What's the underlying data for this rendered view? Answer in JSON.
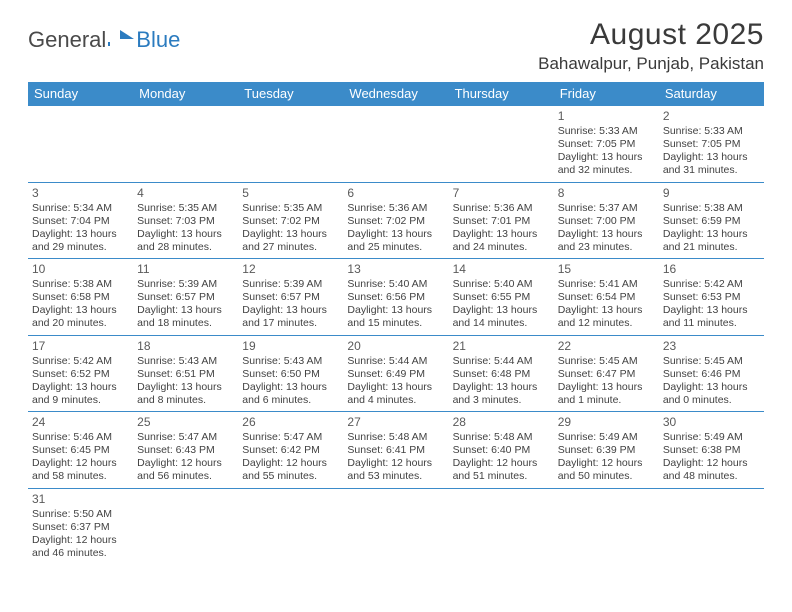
{
  "logo": {
    "text1": "General",
    "text2": "Blue"
  },
  "title": "August 2025",
  "subtitle": "Bahawalpur, Punjab, Pakistan",
  "colors": {
    "header_bg": "#3b8bc9",
    "header_text": "#ffffff",
    "row_border": "#3b8bc9",
    "body_text": "#424242",
    "title_text": "#3a3a3a",
    "logo_gray": "#4a4a4a",
    "logo_blue": "#2b7bbf",
    "background": "#ffffff"
  },
  "typography": {
    "title_fontsize": 30,
    "subtitle_fontsize": 17,
    "dow_fontsize": 13,
    "daynum_fontsize": 12,
    "cell_fontsize": 10.5
  },
  "dow": [
    "Sunday",
    "Monday",
    "Tuesday",
    "Wednesday",
    "Thursday",
    "Friday",
    "Saturday"
  ],
  "weeks": [
    [
      null,
      null,
      null,
      null,
      null,
      {
        "n": "1",
        "sr": "Sunrise: 5:33 AM",
        "ss": "Sunset: 7:05 PM",
        "d1": "Daylight: 13 hours",
        "d2": "and 32 minutes."
      },
      {
        "n": "2",
        "sr": "Sunrise: 5:33 AM",
        "ss": "Sunset: 7:05 PM",
        "d1": "Daylight: 13 hours",
        "d2": "and 31 minutes."
      }
    ],
    [
      {
        "n": "3",
        "sr": "Sunrise: 5:34 AM",
        "ss": "Sunset: 7:04 PM",
        "d1": "Daylight: 13 hours",
        "d2": "and 29 minutes."
      },
      {
        "n": "4",
        "sr": "Sunrise: 5:35 AM",
        "ss": "Sunset: 7:03 PM",
        "d1": "Daylight: 13 hours",
        "d2": "and 28 minutes."
      },
      {
        "n": "5",
        "sr": "Sunrise: 5:35 AM",
        "ss": "Sunset: 7:02 PM",
        "d1": "Daylight: 13 hours",
        "d2": "and 27 minutes."
      },
      {
        "n": "6",
        "sr": "Sunrise: 5:36 AM",
        "ss": "Sunset: 7:02 PM",
        "d1": "Daylight: 13 hours",
        "d2": "and 25 minutes."
      },
      {
        "n": "7",
        "sr": "Sunrise: 5:36 AM",
        "ss": "Sunset: 7:01 PM",
        "d1": "Daylight: 13 hours",
        "d2": "and 24 minutes."
      },
      {
        "n": "8",
        "sr": "Sunrise: 5:37 AM",
        "ss": "Sunset: 7:00 PM",
        "d1": "Daylight: 13 hours",
        "d2": "and 23 minutes."
      },
      {
        "n": "9",
        "sr": "Sunrise: 5:38 AM",
        "ss": "Sunset: 6:59 PM",
        "d1": "Daylight: 13 hours",
        "d2": "and 21 minutes."
      }
    ],
    [
      {
        "n": "10",
        "sr": "Sunrise: 5:38 AM",
        "ss": "Sunset: 6:58 PM",
        "d1": "Daylight: 13 hours",
        "d2": "and 20 minutes."
      },
      {
        "n": "11",
        "sr": "Sunrise: 5:39 AM",
        "ss": "Sunset: 6:57 PM",
        "d1": "Daylight: 13 hours",
        "d2": "and 18 minutes."
      },
      {
        "n": "12",
        "sr": "Sunrise: 5:39 AM",
        "ss": "Sunset: 6:57 PM",
        "d1": "Daylight: 13 hours",
        "d2": "and 17 minutes."
      },
      {
        "n": "13",
        "sr": "Sunrise: 5:40 AM",
        "ss": "Sunset: 6:56 PM",
        "d1": "Daylight: 13 hours",
        "d2": "and 15 minutes."
      },
      {
        "n": "14",
        "sr": "Sunrise: 5:40 AM",
        "ss": "Sunset: 6:55 PM",
        "d1": "Daylight: 13 hours",
        "d2": "and 14 minutes."
      },
      {
        "n": "15",
        "sr": "Sunrise: 5:41 AM",
        "ss": "Sunset: 6:54 PM",
        "d1": "Daylight: 13 hours",
        "d2": "and 12 minutes."
      },
      {
        "n": "16",
        "sr": "Sunrise: 5:42 AM",
        "ss": "Sunset: 6:53 PM",
        "d1": "Daylight: 13 hours",
        "d2": "and 11 minutes."
      }
    ],
    [
      {
        "n": "17",
        "sr": "Sunrise: 5:42 AM",
        "ss": "Sunset: 6:52 PM",
        "d1": "Daylight: 13 hours",
        "d2": "and 9 minutes."
      },
      {
        "n": "18",
        "sr": "Sunrise: 5:43 AM",
        "ss": "Sunset: 6:51 PM",
        "d1": "Daylight: 13 hours",
        "d2": "and 8 minutes."
      },
      {
        "n": "19",
        "sr": "Sunrise: 5:43 AM",
        "ss": "Sunset: 6:50 PM",
        "d1": "Daylight: 13 hours",
        "d2": "and 6 minutes."
      },
      {
        "n": "20",
        "sr": "Sunrise: 5:44 AM",
        "ss": "Sunset: 6:49 PM",
        "d1": "Daylight: 13 hours",
        "d2": "and 4 minutes."
      },
      {
        "n": "21",
        "sr": "Sunrise: 5:44 AM",
        "ss": "Sunset: 6:48 PM",
        "d1": "Daylight: 13 hours",
        "d2": "and 3 minutes."
      },
      {
        "n": "22",
        "sr": "Sunrise: 5:45 AM",
        "ss": "Sunset: 6:47 PM",
        "d1": "Daylight: 13 hours",
        "d2": "and 1 minute."
      },
      {
        "n": "23",
        "sr": "Sunrise: 5:45 AM",
        "ss": "Sunset: 6:46 PM",
        "d1": "Daylight: 13 hours",
        "d2": "and 0 minutes."
      }
    ],
    [
      {
        "n": "24",
        "sr": "Sunrise: 5:46 AM",
        "ss": "Sunset: 6:45 PM",
        "d1": "Daylight: 12 hours",
        "d2": "and 58 minutes."
      },
      {
        "n": "25",
        "sr": "Sunrise: 5:47 AM",
        "ss": "Sunset: 6:43 PM",
        "d1": "Daylight: 12 hours",
        "d2": "and 56 minutes."
      },
      {
        "n": "26",
        "sr": "Sunrise: 5:47 AM",
        "ss": "Sunset: 6:42 PM",
        "d1": "Daylight: 12 hours",
        "d2": "and 55 minutes."
      },
      {
        "n": "27",
        "sr": "Sunrise: 5:48 AM",
        "ss": "Sunset: 6:41 PM",
        "d1": "Daylight: 12 hours",
        "d2": "and 53 minutes."
      },
      {
        "n": "28",
        "sr": "Sunrise: 5:48 AM",
        "ss": "Sunset: 6:40 PM",
        "d1": "Daylight: 12 hours",
        "d2": "and 51 minutes."
      },
      {
        "n": "29",
        "sr": "Sunrise: 5:49 AM",
        "ss": "Sunset: 6:39 PM",
        "d1": "Daylight: 12 hours",
        "d2": "and 50 minutes."
      },
      {
        "n": "30",
        "sr": "Sunrise: 5:49 AM",
        "ss": "Sunset: 6:38 PM",
        "d1": "Daylight: 12 hours",
        "d2": "and 48 minutes."
      }
    ],
    [
      {
        "n": "31",
        "sr": "Sunrise: 5:50 AM",
        "ss": "Sunset: 6:37 PM",
        "d1": "Daylight: 12 hours",
        "d2": "and 46 minutes."
      },
      null,
      null,
      null,
      null,
      null,
      null
    ]
  ]
}
